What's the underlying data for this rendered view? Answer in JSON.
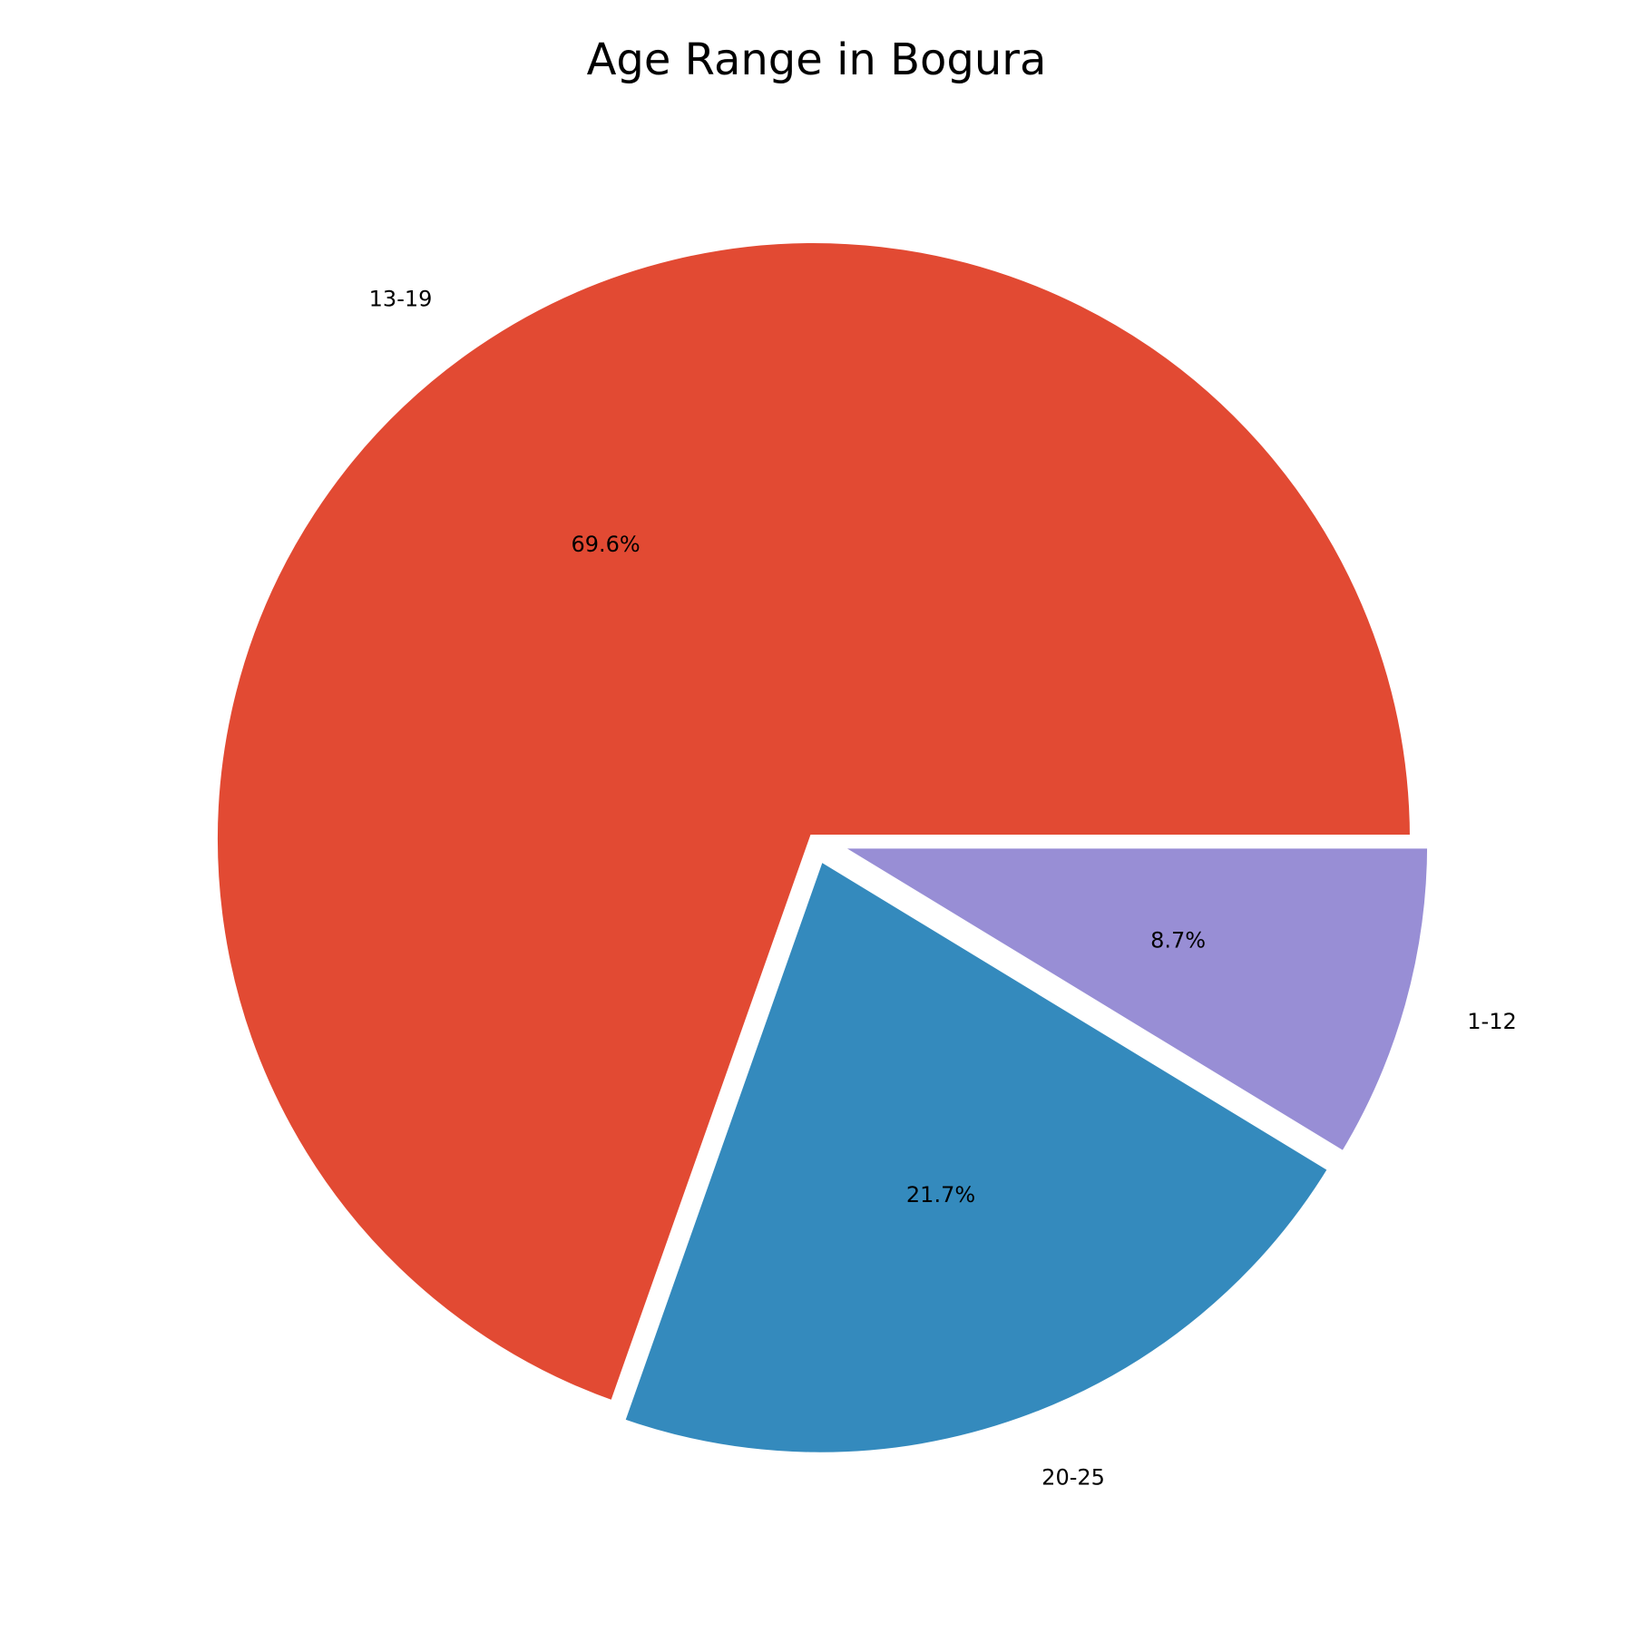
{
  "chart_data": {
    "type": "pie",
    "title": "Age Range in Bogura",
    "slices": [
      {
        "label": "13-19",
        "value": 69.6,
        "pct_label": "69.6%",
        "color": "#E24A33",
        "exploded": false
      },
      {
        "label": "20-25",
        "value": 21.7,
        "pct_label": "21.7%",
        "color": "#348ABD",
        "exploded": true
      },
      {
        "label": "1-12",
        "value": 8.7,
        "pct_label": "8.7%",
        "color": "#988ED5",
        "exploded": true
      }
    ],
    "start_angle_deg": 0,
    "direction": "counterclockwise",
    "slice_edge_color": "#ffffff",
    "legend": "none"
  }
}
